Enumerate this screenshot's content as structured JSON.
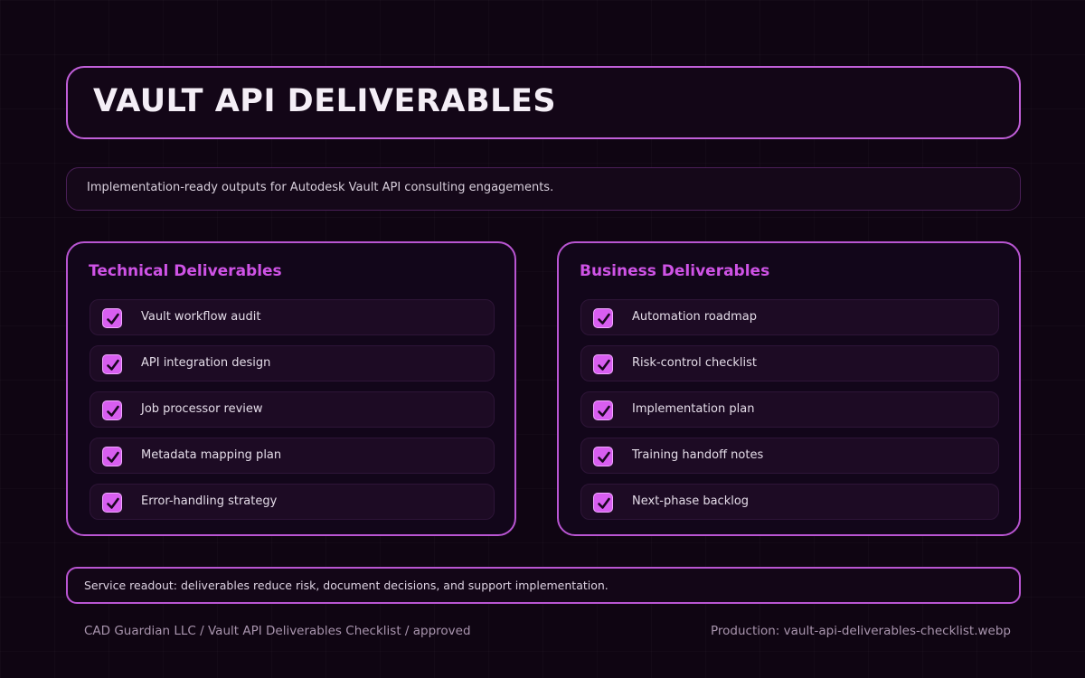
{
  "header": {
    "title": "VAULT API DELIVERABLES"
  },
  "subtitle": "Implementation-ready outputs for Autodesk Vault API consulting engagements.",
  "technical": {
    "title": "Technical Deliverables",
    "items": [
      "Vault workflow audit",
      "API integration design",
      "Job processor review",
      "Metadata mapping plan",
      "Error-handling strategy"
    ]
  },
  "business": {
    "title": "Business Deliverables",
    "items": [
      "Automation roadmap",
      "Risk-control checklist",
      "Implementation plan",
      "Training handoff notes",
      "Next-phase backlog"
    ]
  },
  "readout": "Service readout: deliverables reduce risk, document decisions, and support implementation.",
  "footer": {
    "left": "CAD Guardian LLC / Vault API Deliverables Checklist / approved",
    "right": "Production: vault-api-deliverables-checklist.webp"
  },
  "colors": {
    "accent": "#cf53e6",
    "border": "#b955d2",
    "background": "#0f0512"
  },
  "icons": {
    "check": "checkbox-checked-icon"
  }
}
